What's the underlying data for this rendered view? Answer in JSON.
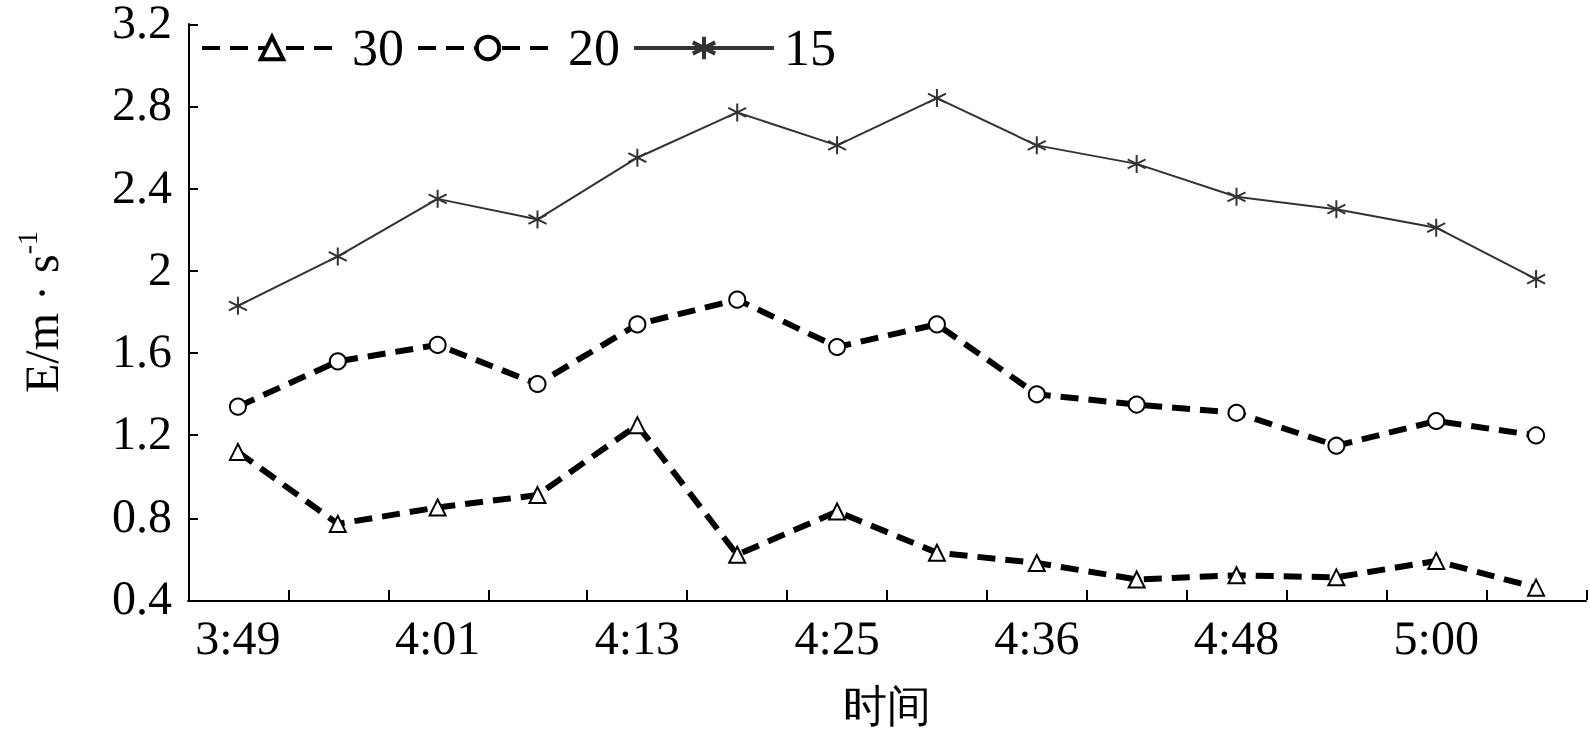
{
  "chart_data": {
    "type": "line",
    "xlabel": "时间",
    "ylabel": "E/m · s$^{-1}$",
    "categories": [
      "3:49",
      null,
      "4:01",
      null,
      "4:13",
      null,
      "4:25",
      null,
      "4:36",
      null,
      "4:48",
      null,
      "5:00",
      null
    ],
    "series": [
      {
        "name": "30",
        "color": "#000000",
        "marker": "triangle",
        "line_style": "dashed",
        "values": [
          1.12,
          0.77,
          0.85,
          0.91,
          1.25,
          0.62,
          0.83,
          0.63,
          0.58,
          0.5,
          0.52,
          0.51,
          0.59,
          0.46
        ]
      },
      {
        "name": "20",
        "color": "#000000",
        "marker": "circle",
        "line_style": "dashed",
        "values": [
          1.34,
          1.56,
          1.64,
          1.45,
          1.74,
          1.86,
          1.63,
          1.74,
          1.4,
          1.35,
          1.31,
          1.15,
          1.27,
          1.2
        ]
      },
      {
        "name": "15",
        "color": "#333333",
        "marker": "cross",
        "line_style": "solid",
        "values": [
          1.83,
          2.07,
          2.35,
          2.25,
          2.55,
          2.77,
          2.61,
          2.84,
          2.61,
          2.52,
          2.36,
          2.3,
          2.21,
          1.96
        ]
      }
    ],
    "ylim": [
      0.4,
      3.2
    ],
    "yticks": [
      0.4,
      0.8,
      1.2,
      1.6,
      2,
      2.4,
      2.8,
      3.2
    ],
    "grid": false,
    "legend": "top left"
  }
}
